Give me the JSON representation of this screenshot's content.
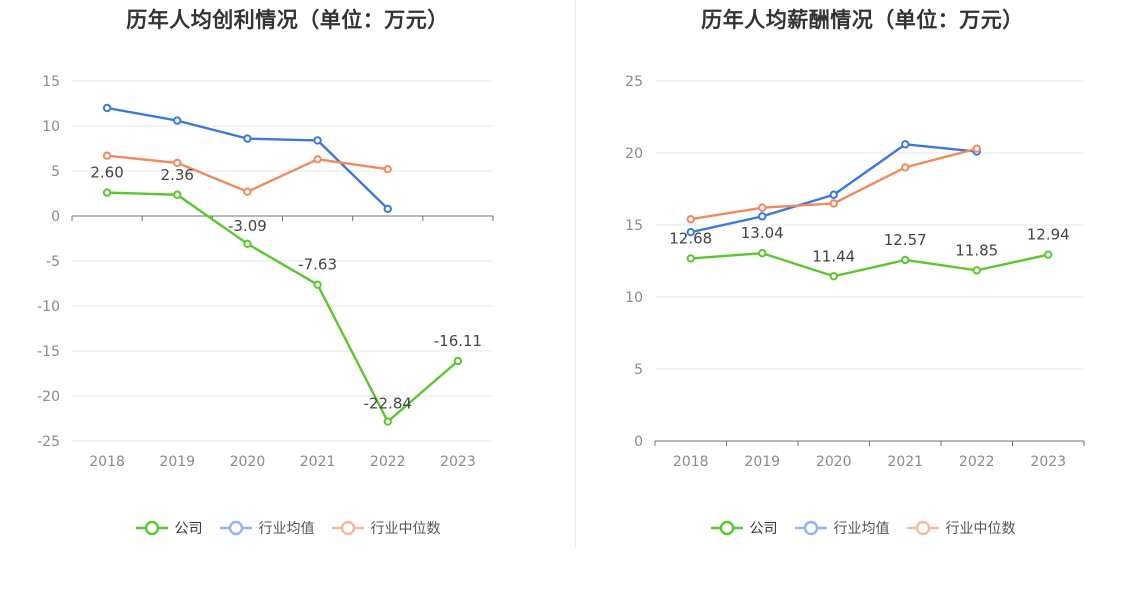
{
  "chart_data": [
    {
      "type": "line",
      "title": "历年人均创利情况（单位：万元）",
      "categories": [
        "2018",
        "2019",
        "2020",
        "2021",
        "2022",
        "2023"
      ],
      "ylim": [
        -25,
        15
      ],
      "yticks": [
        "15",
        "10",
        "5",
        "0",
        "-5",
        "-10",
        "-15",
        "-20",
        "-25"
      ],
      "grid": true,
      "legend": "bottom",
      "series": [
        {
          "name": "公司",
          "color": "#5ac72f",
          "values": [
            2.6,
            2.36,
            -3.09,
            -7.63,
            -22.84,
            -16.11
          ],
          "labels": [
            "2.60",
            "2.36",
            "-3.09",
            "-7.63",
            "-22.84",
            "-16.11"
          ]
        },
        {
          "name": "行业均值",
          "color": "#3d78de",
          "values": [
            12.0,
            10.6,
            8.6,
            8.4,
            0.8,
            null
          ]
        },
        {
          "name": "行业中位数",
          "color": "#f08a5d",
          "values": [
            6.7,
            5.9,
            2.7,
            6.3,
            5.2,
            null
          ]
        }
      ]
    },
    {
      "type": "line",
      "title": "历年人均薪酬情况（单位：万元）",
      "categories": [
        "2018",
        "2019",
        "2020",
        "2021",
        "2022",
        "2023"
      ],
      "ylim": [
        0,
        25
      ],
      "yticks": [
        "25",
        "20",
        "15",
        "10",
        "5",
        "0"
      ],
      "grid": true,
      "legend": "bottom",
      "series": [
        {
          "name": "公司",
          "color": "#5ac72f",
          "values": [
            12.68,
            13.04,
            11.44,
            12.57,
            11.85,
            12.94
          ],
          "labels": [
            "12.68",
            "13.04",
            "11.44",
            "12.57",
            "11.85",
            "12.94"
          ]
        },
        {
          "name": "行业均值",
          "color": "#3d78de",
          "values": [
            14.5,
            15.6,
            17.1,
            20.6,
            20.1,
            null
          ]
        },
        {
          "name": "行业中位数",
          "color": "#f08a5d",
          "values": [
            15.4,
            16.2,
            16.5,
            19.0,
            20.3,
            null
          ]
        }
      ]
    }
  ]
}
